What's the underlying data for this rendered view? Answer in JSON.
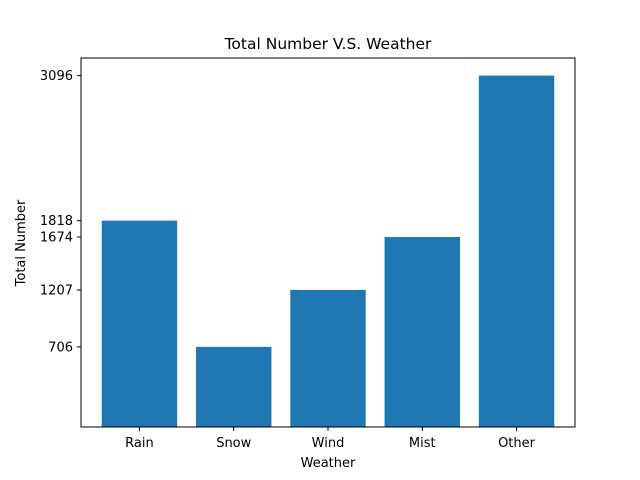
{
  "chart_data": {
    "type": "bar",
    "title": "Total Number V.S. Weather",
    "xlabel": "Weather",
    "ylabel": "Total Number",
    "categories": [
      "Rain",
      "Snow",
      "Wind",
      "Mist",
      "Other"
    ],
    "values": [
      1818,
      706,
      1207,
      1674,
      3096
    ],
    "yticks": [
      706,
      1207,
      1674,
      1818,
      3096
    ],
    "ylim": [
      0,
      3251
    ],
    "grid": false,
    "legend": "none",
    "bar_color": "#1f77b4"
  }
}
